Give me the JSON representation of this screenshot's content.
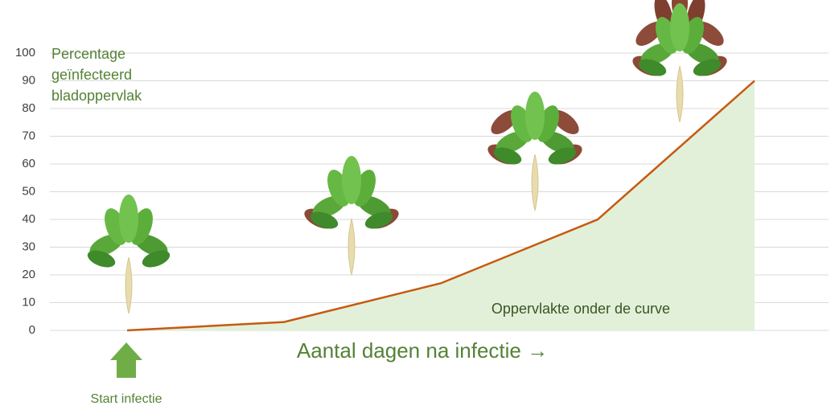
{
  "chart_data": {
    "type": "area",
    "ylabel": "Percentage geïnfecteerd bladoppervlak",
    "xlabel": "Aantal dagen na infectie →",
    "annotations": {
      "area": "Oppervlakte onder de curve",
      "start": "Start infectie"
    },
    "categories": [
      null,
      null,
      null,
      null,
      null
    ],
    "values": [
      0,
      3,
      17,
      40,
      90
    ],
    "color": "#c55a11",
    "fill": "#e2f0d9",
    "ylim": [
      0,
      100
    ],
    "yticks": [
      0,
      10,
      20,
      30,
      40,
      50,
      60,
      70,
      80,
      90,
      100
    ],
    "grid": true
  }
}
